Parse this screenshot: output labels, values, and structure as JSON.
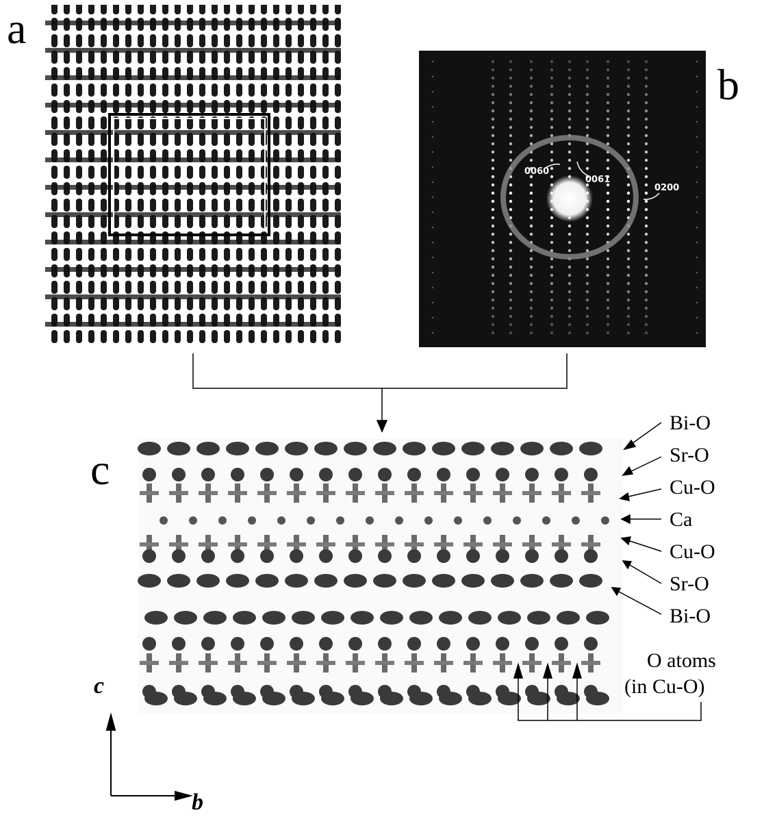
{
  "panels": {
    "a": {
      "letter": "a"
    },
    "b": {
      "letter": "b",
      "reflections": [
        "0060",
        "0061",
        "0200"
      ]
    },
    "c": {
      "letter": "c",
      "layers": [
        "Bi-O",
        "Sr-O",
        "Cu-O",
        "Ca",
        "Cu-O",
        "Sr-O",
        "Bi-O"
      ],
      "o_atoms_label": [
        "O atoms",
        "(in Cu-O)"
      ]
    }
  },
  "axes": {
    "vertical": "c",
    "horizontal": "b"
  },
  "colors": {
    "background": "#ffffff",
    "ink": "#000000",
    "fft_background": "#111111",
    "atom": "#3a3a3a"
  }
}
